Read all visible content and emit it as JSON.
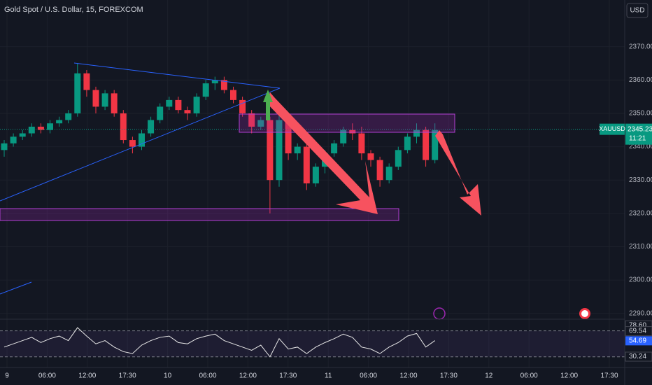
{
  "chart_data": {
    "type": "candlestick",
    "title": "Gold Spot / U.S. Dollar, 15, FOREXCOM",
    "currency": "USD",
    "symbol": "XAUUSD",
    "up_color": "#089981",
    "down_color": "#f23645",
    "open": [
      2339,
      2341,
      2343,
      2344,
      2346,
      2345,
      2347,
      2348,
      2350,
      2362,
      2357,
      2352,
      2356,
      2350,
      2342,
      2340,
      2344,
      2348,
      2352,
      2354,
      2351,
      2350,
      2355,
      2359,
      2360,
      2357,
      2354,
      2350,
      2346,
      2348,
      2330,
      2348,
      2338,
      2340,
      2329,
      2334,
      2338,
      2341,
      2345,
      2344,
      2338,
      2336,
      2330,
      2334,
      2339,
      2343,
      2345,
      2336
    ],
    "high": [
      2342,
      2344,
      2345,
      2347,
      2347,
      2348,
      2349,
      2351,
      2365,
      2363,
      2358,
      2357,
      2357,
      2351,
      2343,
      2345,
      2349,
      2353,
      2355,
      2355,
      2352,
      2356,
      2360,
      2361,
      2361,
      2358,
      2355,
      2351,
      2349,
      2349,
      2350,
      2349,
      2341,
      2341,
      2335,
      2339,
      2342,
      2346,
      2347,
      2346,
      2339,
      2337,
      2335,
      2340,
      2344,
      2347,
      2346,
      2347
    ],
    "low": [
      2337,
      2340,
      2342,
      2343,
      2344,
      2344,
      2346,
      2347,
      2349,
      2355,
      2350,
      2351,
      2349,
      2341,
      2338,
      2339,
      2343,
      2347,
      2351,
      2350,
      2348,
      2349,
      2354,
      2357,
      2356,
      2353,
      2349,
      2344,
      2345,
      2320,
      2328,
      2336,
      2336,
      2327,
      2328,
      2332,
      2337,
      2340,
      2342,
      2336,
      2334,
      2328,
      2329,
      2333,
      2338,
      2341,
      2334,
      2335
    ],
    "close": [
      2341,
      2343,
      2344,
      2346,
      2345,
      2347,
      2348,
      2350,
      2362,
      2357,
      2352,
      2356,
      2350,
      2342,
      2340,
      2344,
      2348,
      2352,
      2354,
      2351,
      2350,
      2355,
      2359,
      2360,
      2357,
      2354,
      2350,
      2346,
      2348,
      2330,
      2348,
      2338,
      2340,
      2329,
      2334,
      2338,
      2341,
      2345,
      2344,
      2338,
      2336,
      2330,
      2334,
      2339,
      2343,
      2345,
      2336,
      2345
    ],
    "ylim": [
      2287,
      2384
    ],
    "yticks": [
      {
        "value": 2290,
        "label": "2290.00"
      },
      {
        "value": 2300,
        "label": "2300.00"
      },
      {
        "value": 2310,
        "label": "2310.00"
      },
      {
        "value": 2320,
        "label": "2320.00"
      },
      {
        "value": 2330,
        "label": "2330.00"
      },
      {
        "value": 2340,
        "label": "2340.00"
      },
      {
        "value": 2350,
        "label": "2350.00"
      },
      {
        "value": 2360,
        "label": "2360.00"
      },
      {
        "value": 2370,
        "label": "2370.00"
      }
    ],
    "last_price": {
      "value": 2345.23,
      "label": "2345.23"
    },
    "countdown": "11:21",
    "x_labels": [
      "9",
      "06:00",
      "12:00",
      "17:30",
      "10",
      "06:00",
      "12:00",
      "17:30",
      "11",
      "06:00",
      "12:00",
      "17:30",
      "12",
      "06:00",
      "12:00",
      "17:30"
    ],
    "rsi": {
      "color": "#e8e8e8",
      "ylim": [
        20,
        88
      ],
      "levels": [
        70,
        30
      ],
      "values": [
        45,
        50,
        55,
        60,
        52,
        58,
        62,
        55,
        75,
        62,
        50,
        55,
        45,
        38,
        35,
        48,
        55,
        60,
        62,
        52,
        50,
        58,
        62,
        65,
        55,
        50,
        45,
        40,
        48,
        30,
        58,
        42,
        45,
        35,
        45,
        52,
        58,
        65,
        60,
        45,
        42,
        35,
        45,
        52,
        62,
        66,
        45,
        55
      ],
      "scale_labels": [
        {
          "value": 78.6,
          "label": "78.60"
        },
        {
          "value": 69.54,
          "label": "69.54"
        },
        {
          "value": 54.69,
          "label": "54.69"
        },
        {
          "value": 30.24,
          "label": "30.24"
        }
      ]
    }
  }
}
